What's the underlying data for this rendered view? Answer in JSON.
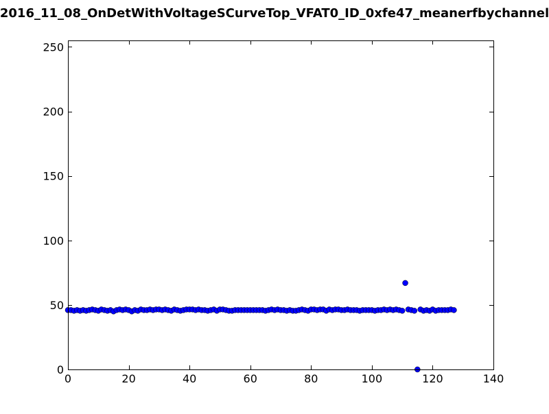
{
  "chart_data": {
    "type": "scatter",
    "title": "2016_11_08_OnDetWithVoltageSCurveTop_VFAT0_ID_0xfe47_meanerfbychannel",
    "xlabel": "",
    "ylabel": "",
    "xlim": [
      0,
      140
    ],
    "ylim": [
      0,
      255
    ],
    "xticks": [
      0,
      20,
      40,
      60,
      80,
      100,
      120,
      140
    ],
    "yticks": [
      0,
      50,
      100,
      150,
      200,
      250
    ],
    "xtick_labels": [
      "0",
      "20",
      "40",
      "60",
      "80",
      "100",
      "120",
      "140"
    ],
    "ytick_labels": [
      "0",
      "50",
      "100",
      "150",
      "200",
      "250"
    ],
    "grid": false,
    "legend": "none",
    "marker_color": "#0000ff",
    "series": [
      {
        "x": [
          0,
          1,
          2,
          3,
          4,
          5,
          6,
          7,
          8,
          9,
          10,
          11,
          12,
          13,
          14,
          15,
          16,
          17,
          18,
          19,
          20,
          21,
          22,
          23,
          24,
          25,
          26,
          27,
          28,
          29,
          30,
          31,
          32,
          33,
          34,
          35,
          36,
          37,
          38,
          39,
          40,
          41,
          42,
          43,
          44,
          45,
          46,
          47,
          48,
          49,
          50,
          51,
          52,
          53,
          54,
          55,
          56,
          57,
          58,
          59,
          60,
          61,
          62,
          63,
          64,
          65,
          66,
          67,
          68,
          69,
          70,
          71,
          72,
          73,
          74,
          75,
          76,
          77,
          78,
          79,
          80,
          81,
          82,
          83,
          84,
          85,
          86,
          87,
          88,
          89,
          90,
          91,
          92,
          93,
          94,
          95,
          96,
          97,
          98,
          99,
          100,
          101,
          102,
          103,
          104,
          105,
          106,
          107,
          108,
          109,
          110,
          111,
          112,
          113,
          114,
          115,
          116,
          117,
          118,
          119,
          120,
          121,
          122,
          123,
          124,
          125,
          126,
          127
        ],
        "values": [
          46,
          46,
          45.5,
          46,
          45.5,
          46,
          45.5,
          46,
          46.5,
          46,
          45.5,
          46.5,
          46,
          45.5,
          46,
          45,
          46,
          46.5,
          46,
          46.5,
          46,
          45,
          46,
          45.5,
          46.5,
          46,
          46,
          46.5,
          46,
          46.5,
          46.5,
          46,
          46.5,
          46,
          45.5,
          46.5,
          46,
          45.5,
          46,
          46.5,
          46.5,
          46.5,
          46,
          46.5,
          46,
          46,
          45.5,
          46,
          46.5,
          45.5,
          46.5,
          46.5,
          46,
          45.5,
          45.5,
          46,
          46,
          46,
          46,
          46,
          46,
          46,
          46,
          46,
          46,
          45.5,
          46,
          46.5,
          46,
          46.5,
          46,
          46,
          45.5,
          46,
          45.5,
          45.5,
          46,
          46.5,
          46,
          45.5,
          46.5,
          46.5,
          46,
          46.5,
          46.5,
          45.5,
          46.5,
          46,
          46.5,
          46.5,
          46,
          46,
          46.5,
          46,
          46,
          46,
          45.5,
          46,
          46,
          46,
          46,
          45.5,
          46,
          46,
          46.5,
          46,
          46.5,
          46,
          46.5,
          46,
          45.5,
          67,
          46.5,
          46,
          45.5,
          0,
          46.5,
          45.5,
          46,
          45.5,
          46.5,
          45.5,
          46,
          46,
          46,
          46,
          46.5,
          46
        ]
      }
    ]
  }
}
